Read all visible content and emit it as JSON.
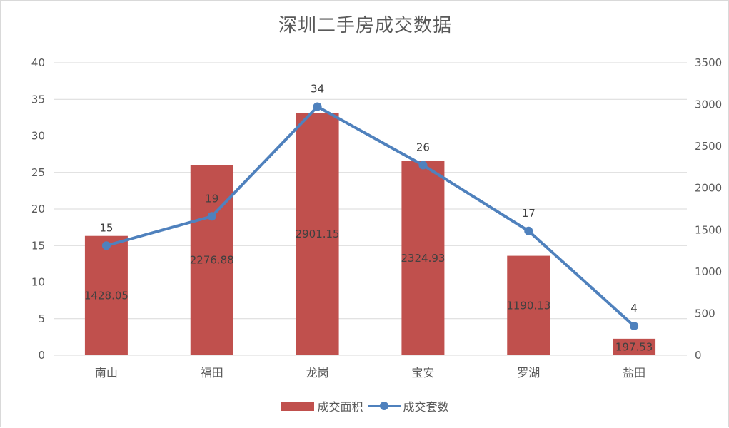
{
  "chart_data": {
    "type": "bar+line",
    "title": "深圳二手房成交数据",
    "categories": [
      "南山",
      "福田",
      "龙岗",
      "宝安",
      "罗湖",
      "盐田"
    ],
    "series": [
      {
        "name": "成交面积",
        "type": "bar",
        "axis": "right",
        "color": "#c0504d",
        "values": [
          1428.05,
          2276.88,
          2901.15,
          2324.93,
          1190.13,
          197.53
        ],
        "labels": [
          "1428.05",
          "2276.88",
          "2901.15",
          "2324.93",
          "1190.13",
          "197.53"
        ]
      },
      {
        "name": "成交套数",
        "type": "line",
        "axis": "left",
        "color": "#4f81bd",
        "values": [
          15,
          19,
          34,
          26,
          17,
          4
        ],
        "labels": [
          "15",
          "19",
          "34",
          "26",
          "17",
          "4"
        ]
      }
    ],
    "y_left": {
      "min": 0,
      "max": 40,
      "ticks": [
        "0",
        "5",
        "10",
        "15",
        "20",
        "25",
        "30",
        "35",
        "40"
      ]
    },
    "y_right": {
      "min": 0,
      "max": 3500,
      "ticks": [
        "0",
        "500",
        "1000",
        "1500",
        "2000",
        "2500",
        "3000",
        "3500"
      ]
    },
    "grid": true,
    "legend_position": "bottom"
  },
  "legend": {
    "bar_label": "成交面积",
    "line_label": "成交套数"
  },
  "colors": {
    "bar": "#c0504d",
    "line": "#4f81bd",
    "grid": "#d9d9d9",
    "text": "#595959"
  }
}
